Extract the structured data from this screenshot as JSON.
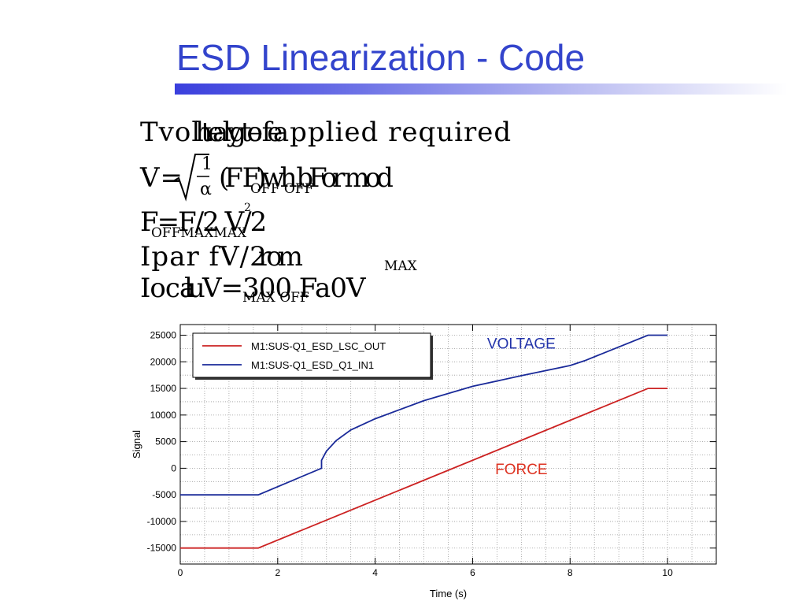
{
  "slide": {
    "title": "ESD Linearization - Code",
    "garbled_lines": [
      {
        "main": "Tvoltage applied required",
        "over": "he ly to  fe",
        "sub": ""
      },
      {
        "main": "V=",
        "over": "(F F)wh bFor mod",
        "sub": "OFF  OFF"
      },
      {
        "main": "F=F/2 V/2",
        "over": "",
        "sub": "OFFMAXMAX"
      },
      {
        "main": "Ipar fV/2",
        "over": "rom",
        "sub": "MAX"
      },
      {
        "main": "Ioca V=300 Fa0V",
        "over": "lu",
        "sub": "MAX  OFF"
      }
    ],
    "formula_fragments": {
      "numerator": "1",
      "denominator": "α",
      "superscript": "2"
    }
  },
  "chart_data": {
    "type": "line",
    "title": "",
    "xlabel": "Time (s)",
    "ylabel": "Signal",
    "xlim": [
      0,
      11
    ],
    "ylim": [
      -18000,
      27000
    ],
    "xticks": [
      0,
      2,
      4,
      6,
      8,
      10
    ],
    "yticks": [
      -15000,
      -10000,
      -5000,
      0,
      5000,
      10000,
      15000,
      20000,
      25000
    ],
    "xtick_labels": [
      "0",
      "2",
      "4",
      "6",
      "8",
      "10"
    ],
    "ytick_labels": [
      "-15000",
      "-10000",
      "-5000",
      "0",
      "5000",
      "10000",
      "15000",
      "20000",
      "25000"
    ],
    "grid": true,
    "legend_position": "top-left",
    "series": [
      {
        "name": "M1:SUS-Q1_ESD_LSC_OUT",
        "color": "#cc2222",
        "x": [
          0,
          1.6,
          9.6,
          10
        ],
        "y": [
          -15000,
          -15000,
          15000,
          15000
        ]
      },
      {
        "name": "M1:SUS-Q1_ESD_Q1_IN1",
        "color": "#1a2a99",
        "x": [
          0,
          1.6,
          2.9,
          2.9,
          3.0,
          3.2,
          3.5,
          4.0,
          5.0,
          6.0,
          7.0,
          8.0,
          8.3,
          9.6,
          10
        ],
        "y": [
          -5000,
          -5000,
          0,
          1500,
          3200,
          5200,
          7200,
          9300,
          12700,
          15400,
          17400,
          19300,
          20200,
          25000,
          25000
        ]
      }
    ],
    "annotations": [
      {
        "text": "VOLTAGE",
        "x": 7.0,
        "y": 22500,
        "color": "#2233aa"
      },
      {
        "text": "FORCE",
        "x": 7.0,
        "y": -1100,
        "color": "#dd3322"
      }
    ]
  }
}
